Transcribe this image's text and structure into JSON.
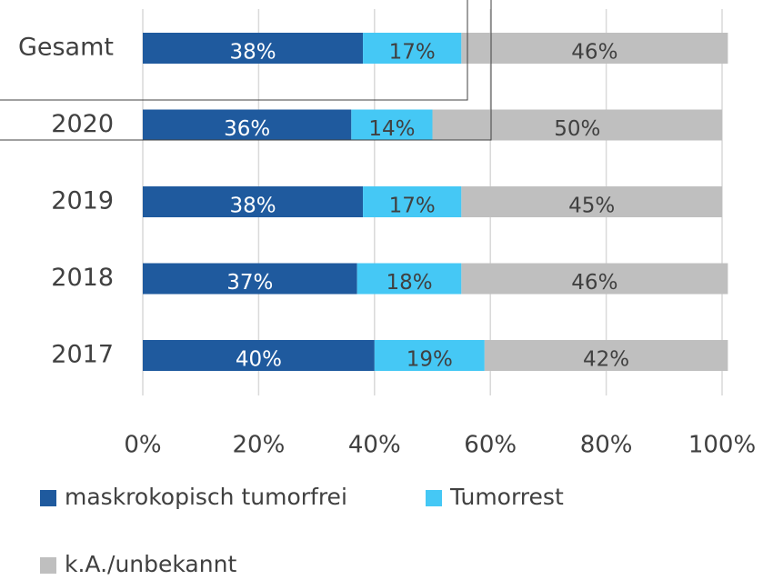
{
  "chart_data": {
    "type": "stacked_barh",
    "categories": [
      "Gesamt",
      "2020",
      "2019",
      "2018",
      "2017"
    ],
    "series": [
      {
        "name": "maskrokopisch tumorfrei",
        "color": "#1f5a9e",
        "values": [
          38,
          36,
          38,
          37,
          40
        ],
        "value_labels": [
          "38%",
          "36%",
          "38%",
          "37%",
          "40%"
        ]
      },
      {
        "name": "Tumorrest",
        "color": "#45c8f5",
        "values": [
          17,
          14,
          17,
          18,
          19
        ],
        "value_labels": [
          "17%",
          "14%",
          "17%",
          "18%",
          "19%"
        ]
      },
      {
        "name": "k.A./unbekannt",
        "color": "#bfbfbf",
        "values": [
          46,
          50,
          45,
          46,
          42
        ],
        "value_labels": [
          "46%",
          "50%",
          "45%",
          "46%",
          "42%"
        ]
      }
    ],
    "xlim": [
      0,
      100
    ],
    "xticks": [
      {
        "value": 0,
        "label": "0%"
      },
      {
        "value": 20,
        "label": "20%"
      },
      {
        "value": 40,
        "label": "40%"
      },
      {
        "value": 60,
        "label": "60%"
      },
      {
        "value": 80,
        "label": "80%"
      },
      {
        "value": 100,
        "label": "100%"
      }
    ],
    "grid": true
  }
}
